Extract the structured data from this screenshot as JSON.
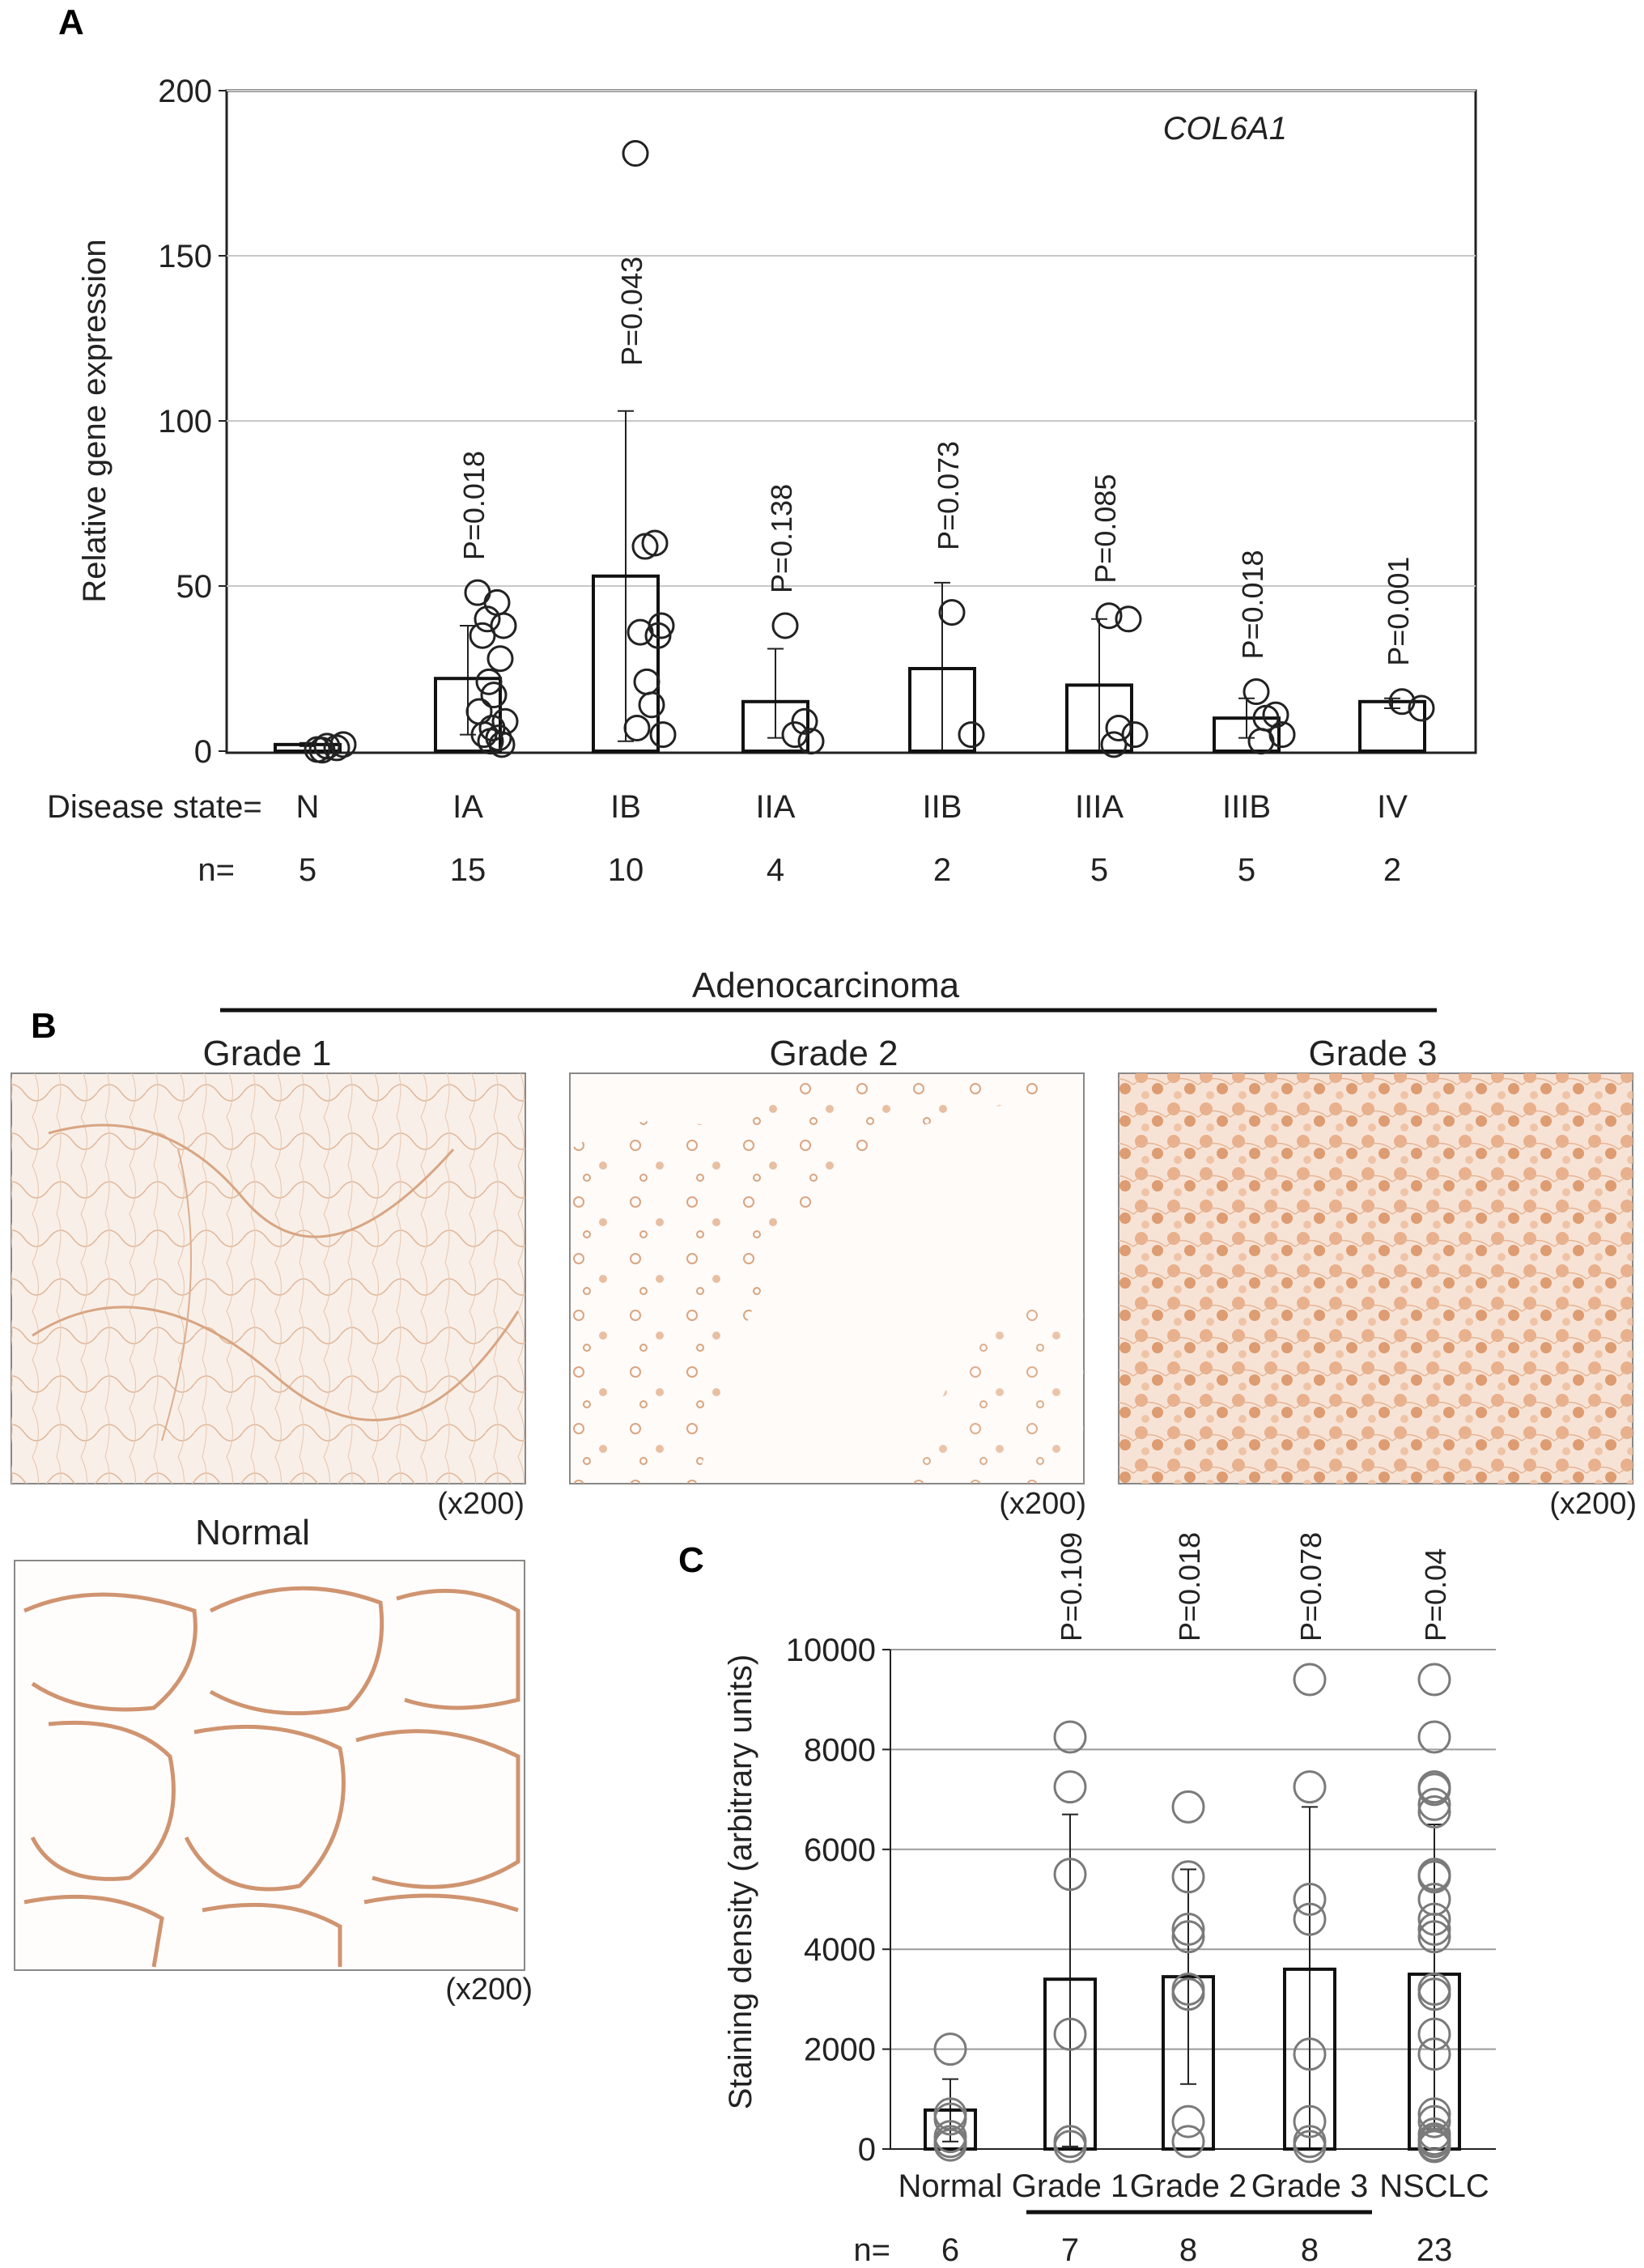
{
  "panels": {
    "a": {
      "label": "A",
      "gene": "COL6A1",
      "row_label_state": "Disease state=",
      "row_label_n": "n="
    },
    "b": {
      "label": "B",
      "group_label": "Adenocarcinoma",
      "images": [
        {
          "title": "Grade 1",
          "magnification": "(x200)",
          "stain": "diffuse-light"
        },
        {
          "title": "Grade 2",
          "magnification": "(x200)",
          "stain": "sparse-cells"
        },
        {
          "title": "Grade 3",
          "magnification": "(x200)",
          "stain": "dense-cells"
        },
        {
          "title": "Normal",
          "magnification": "(x200)",
          "stain": "alveolar"
        }
      ],
      "stain_color": "#c8865a"
    },
    "c": {
      "label": "C",
      "row_label_n": "n="
    }
  },
  "chart_data": [
    {
      "type": "bar",
      "panel": "A",
      "title": "COL6A1",
      "xlabel": "Disease state=",
      "ylabel": "Relative gene expression",
      "ylim": [
        0,
        200
      ],
      "yticks": [
        "0",
        "50",
        "100",
        "150",
        "200"
      ],
      "grid": true,
      "categories": [
        "N",
        "IA",
        "IB",
        "IIA",
        "IIB",
        "IIIA",
        "IIIB",
        "IV"
      ],
      "n": [
        "5",
        "15",
        "10",
        "4",
        "2",
        "5",
        "5",
        "2"
      ],
      "values": [
        2,
        22,
        53,
        15,
        25,
        20,
        10,
        15
      ],
      "error_upper": [
        2.5,
        38,
        103,
        31,
        51,
        40,
        16,
        16
      ],
      "error_lower": [
        1.5,
        5,
        3,
        4,
        0,
        0,
        4,
        13
      ],
      "p_values": [
        "",
        "P=0.018",
        "P=0.043",
        "P=0.138",
        "P=0.073",
        "P=0.085",
        "P=0.018",
        "P=0.001"
      ],
      "points": [
        [
          0.5,
          1,
          1.5,
          2,
          0.3
        ],
        [
          48,
          45,
          40,
          38,
          35,
          28,
          21,
          17,
          12,
          9,
          7,
          5,
          4,
          3,
          2
        ],
        [
          181,
          63,
          62,
          38,
          36,
          35,
          21,
          14,
          7,
          5
        ],
        [
          38,
          9,
          5,
          3
        ],
        [
          42,
          5
        ],
        [
          41,
          40,
          7,
          5,
          2
        ],
        [
          18,
          11,
          10,
          5,
          3
        ],
        [
          15,
          13
        ]
      ]
    },
    {
      "type": "bar",
      "panel": "C",
      "ylabel": "Staining density (arbitrary units)",
      "ylim": [
        0,
        10000
      ],
      "yticks": [
        "0",
        "2000",
        "4000",
        "6000",
        "8000",
        "10000"
      ],
      "grid": true,
      "categories": [
        "Normal",
        "Grade 1",
        "Grade 2",
        "Grade 3",
        "NSCLC"
      ],
      "n": [
        "6",
        "7",
        "8",
        "8",
        "23"
      ],
      "values": [
        780,
        3400,
        3450,
        3600,
        3500
      ],
      "error_upper": [
        1400,
        6700,
        5600,
        6850,
        6500
      ],
      "error_lower": [
        150,
        50,
        1300,
        0,
        400
      ],
      "p_values": [
        "",
        "P=0.109",
        "P=0.018",
        "P=0.078",
        "P=0.04"
      ],
      "points": [
        [
          2000,
          700,
          600,
          250,
          150,
          80
        ],
        [
          8250,
          7250,
          5500,
          2300,
          150,
          50
        ],
        [
          6850,
          5450,
          4400,
          4250,
          3200,
          3100,
          550,
          150
        ],
        [
          9400,
          7250,
          5000,
          4600,
          1900,
          550,
          150,
          50
        ],
        [
          9400,
          8250,
          7250,
          7200,
          6900,
          6750,
          5500,
          5450,
          5000,
          4600,
          4400,
          4250,
          3200,
          3100,
          2300,
          1900,
          700,
          550,
          300,
          200,
          150,
          80,
          50
        ]
      ]
    }
  ]
}
